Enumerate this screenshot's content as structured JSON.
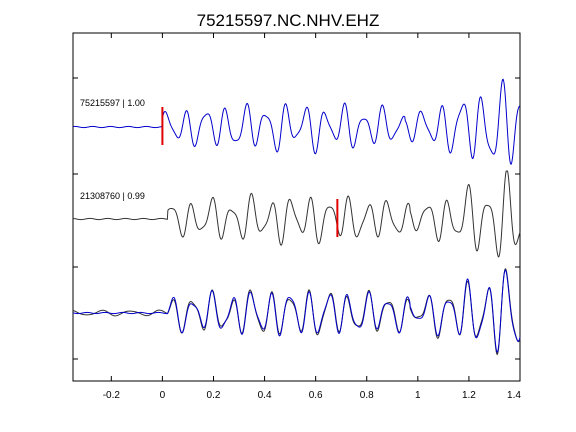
{
  "chart_data": {
    "type": "line",
    "title": "75215597.NC.NHV.EHZ",
    "xlabel": "",
    "ylabel": "",
    "xlim": [
      -0.35,
      1.4
    ],
    "xticks": [
      -0.2,
      0,
      0.2,
      0.4,
      0.6,
      0.8,
      1,
      1.2,
      1.4
    ],
    "xtick_labels": [
      "-0.2",
      "0",
      "0.2",
      "0.4",
      "0.6",
      "0.8",
      "1",
      "1.2",
      "1.4"
    ],
    "grid": false,
    "colors": {
      "master": "#0000cc",
      "match": "#333333",
      "pick": "#e00000",
      "axes": "#000000"
    },
    "traces": [
      {
        "label": "75215597 | 1.00",
        "color": "#0000cc",
        "pick_time": 0.0,
        "onset": 0.0,
        "amplitude": 1.0,
        "seed": 1
      },
      {
        "label": "21308760 | 0.99",
        "color": "#333333",
        "pick_time": 0.685,
        "onset": 0.02,
        "amplitude": 1.0,
        "seed": 2
      },
      {
        "label": "",
        "overlay": true,
        "colors": [
          "#333333",
          "#0000cc"
        ],
        "onset": 0.02,
        "amplitude": 1.0,
        "seed": 3
      }
    ]
  }
}
